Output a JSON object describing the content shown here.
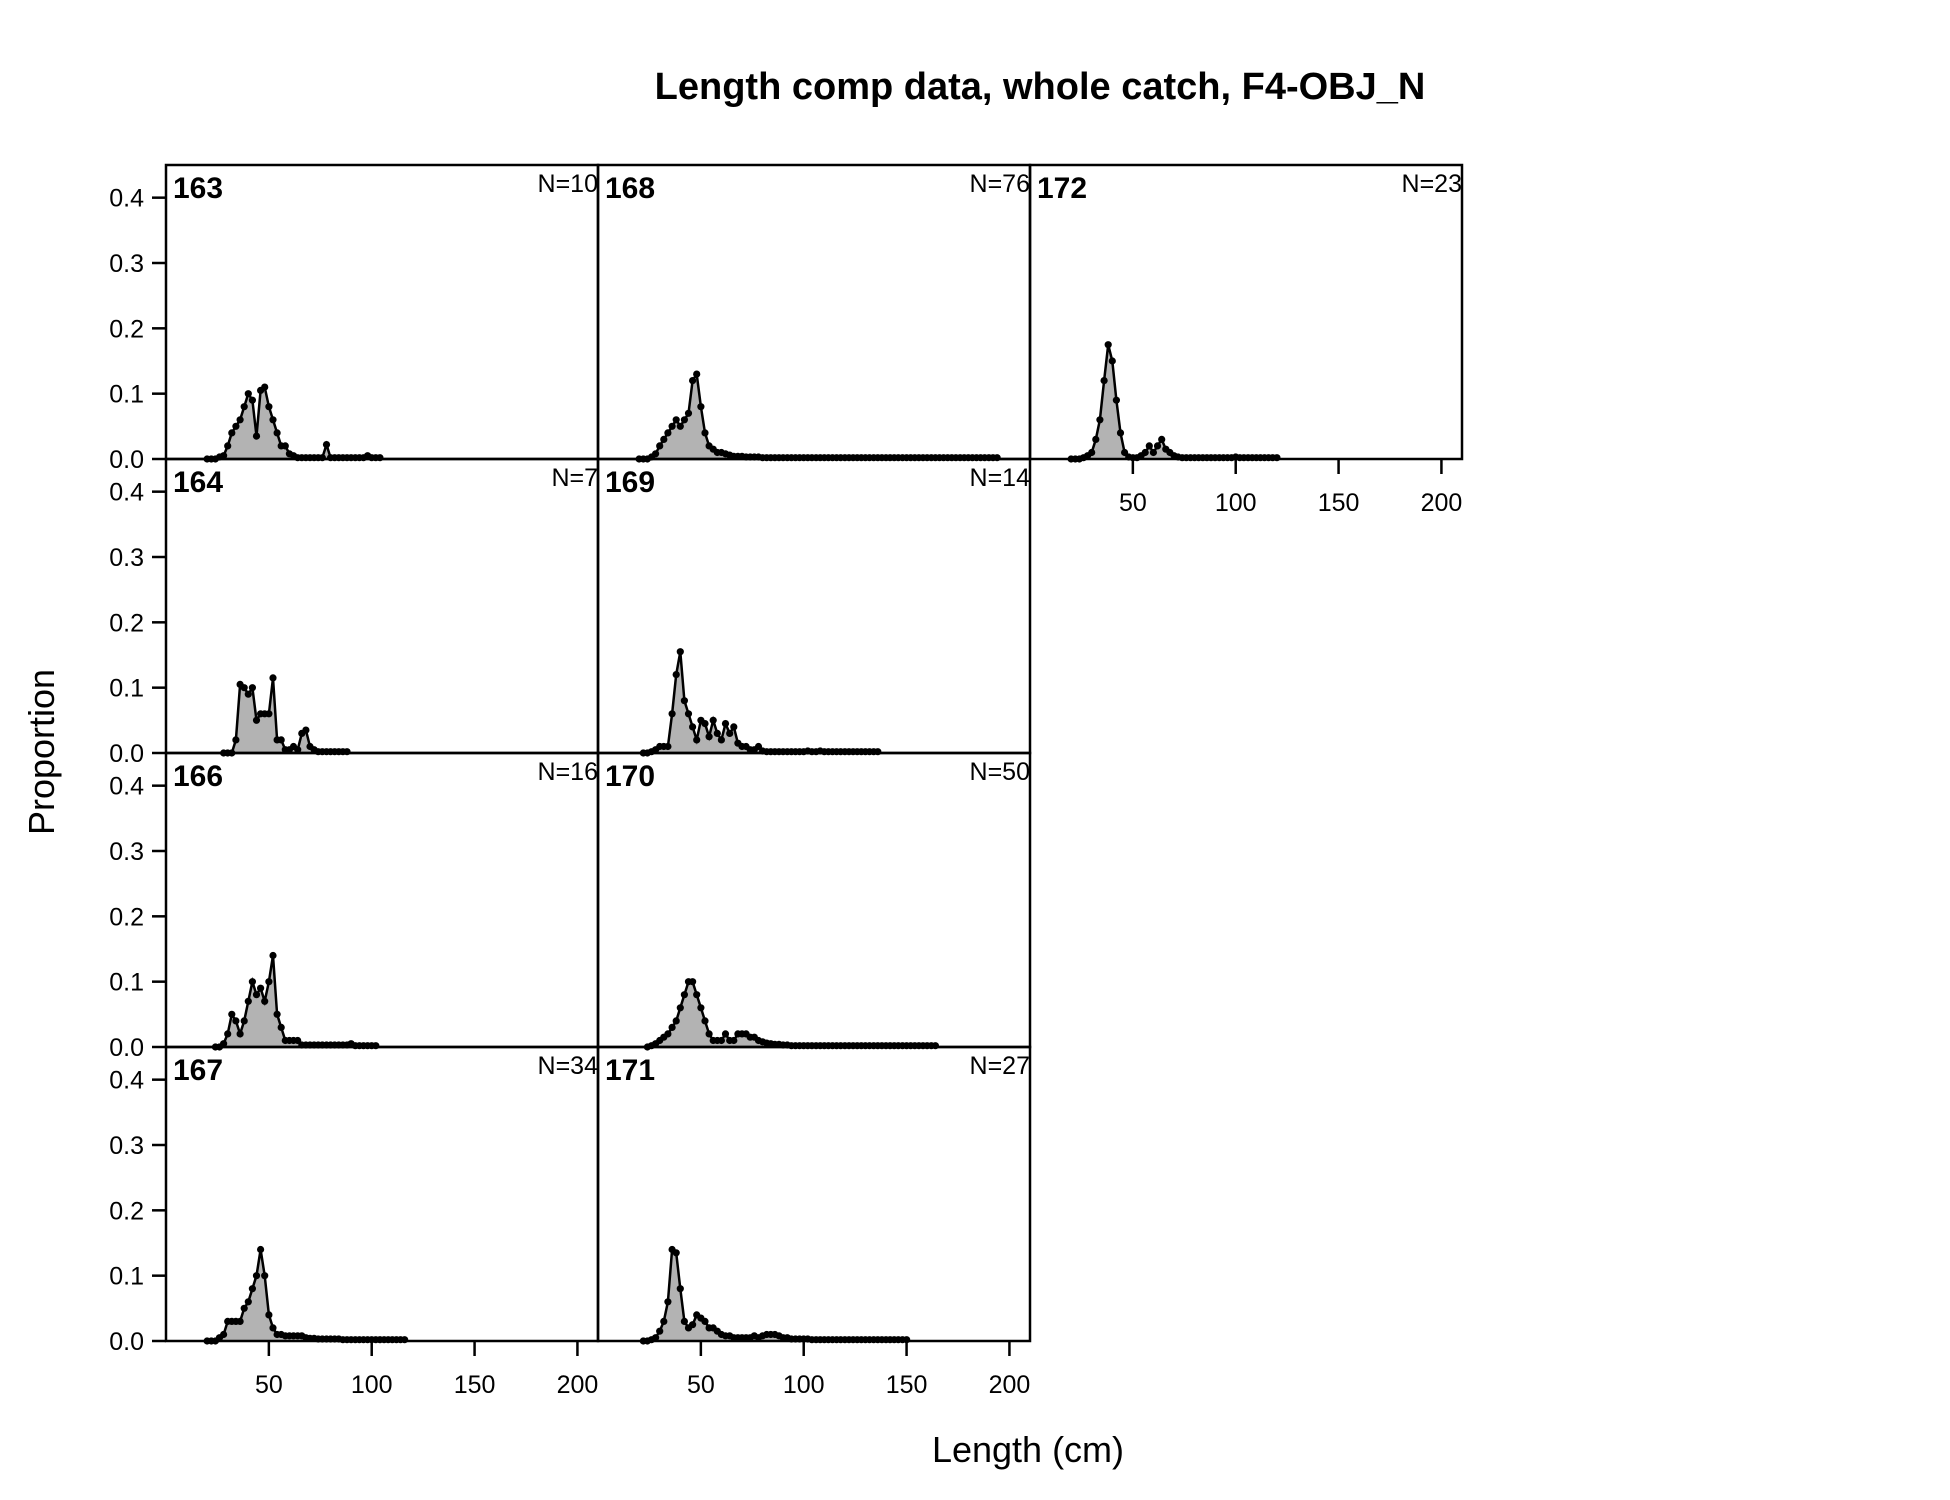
{
  "chart_data": {
    "type": "area",
    "title": "Length comp data, whole catch, F4-OBJ_N",
    "xlabel": "Length (cm)",
    "ylabel": "Proportion",
    "xlim": [
      0,
      210
    ],
    "ylim": [
      0,
      0.45
    ],
    "xticks": [
      "50",
      "100",
      "150",
      "200"
    ],
    "yticks": [
      "0.0",
      "0.1",
      "0.2",
      "0.3",
      "0.4"
    ],
    "grid": false,
    "colors": {
      "fill": "#b3b3b3",
      "line": "#000000"
    },
    "panels": [
      {
        "label": "163",
        "n_label": "N=10",
        "x": [
          20,
          22,
          24,
          26,
          28,
          30,
          32,
          34,
          36,
          38,
          40,
          42,
          44,
          46,
          48,
          50,
          52,
          54,
          56,
          58,
          60,
          62,
          64,
          66,
          68,
          70,
          72,
          74,
          76,
          78,
          80,
          82,
          84,
          86,
          88,
          90,
          92,
          94,
          96,
          98,
          100,
          102,
          104
        ],
        "y": [
          0,
          0,
          0,
          0.003,
          0.005,
          0.02,
          0.04,
          0.05,
          0.06,
          0.08,
          0.1,
          0.09,
          0.035,
          0.105,
          0.11,
          0.08,
          0.06,
          0.04,
          0.02,
          0.02,
          0.008,
          0.005,
          0.002,
          0.002,
          0.002,
          0.002,
          0.002,
          0.002,
          0.002,
          0.022,
          0.002,
          0.002,
          0.002,
          0.002,
          0.002,
          0.002,
          0.002,
          0.002,
          0.002,
          0.005,
          0.002,
          0.002,
          0.002
        ]
      },
      {
        "label": "164",
        "n_label": "N=7",
        "x": [
          28,
          30,
          32,
          34,
          36,
          38,
          40,
          42,
          44,
          46,
          48,
          50,
          52,
          54,
          56,
          58,
          60,
          62,
          64,
          66,
          68,
          70,
          72,
          74,
          76,
          78,
          80,
          82,
          84,
          86,
          88
        ],
        "y": [
          0,
          0,
          0,
          0.02,
          0.105,
          0.1,
          0.09,
          0.1,
          0.05,
          0.06,
          0.06,
          0.06,
          0.115,
          0.02,
          0.02,
          0.005,
          0.005,
          0.01,
          0.005,
          0.03,
          0.035,
          0.01,
          0.005,
          0.002,
          0.002,
          0.002,
          0.002,
          0.002,
          0.002,
          0.002,
          0.002
        ]
      },
      {
        "label": "166",
        "n_label": "N=16",
        "x": [
          24,
          26,
          28,
          30,
          32,
          34,
          36,
          38,
          40,
          42,
          44,
          46,
          48,
          50,
          52,
          54,
          56,
          58,
          60,
          62,
          64,
          66,
          68,
          70,
          72,
          74,
          76,
          78,
          80,
          82,
          84,
          86,
          88,
          90,
          92,
          94,
          96,
          98,
          100,
          102
        ],
        "y": [
          0,
          0,
          0.005,
          0.02,
          0.05,
          0.04,
          0.02,
          0.04,
          0.07,
          0.1,
          0.08,
          0.09,
          0.07,
          0.1,
          0.14,
          0.05,
          0.03,
          0.01,
          0.01,
          0.01,
          0.01,
          0.003,
          0.003,
          0.003,
          0.003,
          0.003,
          0.003,
          0.003,
          0.003,
          0.003,
          0.003,
          0.003,
          0.003,
          0.005,
          0.002,
          0.002,
          0.002,
          0.002,
          0.002,
          0.002
        ]
      },
      {
        "label": "167",
        "n_label": "N=34",
        "x": [
          20,
          22,
          24,
          26,
          28,
          30,
          32,
          34,
          36,
          38,
          40,
          42,
          44,
          46,
          48,
          50,
          52,
          54,
          56,
          58,
          60,
          62,
          64,
          66,
          68,
          70,
          72,
          74,
          76,
          78,
          80,
          82,
          84,
          86,
          88,
          90,
          92,
          94,
          96,
          98,
          100,
          102,
          104,
          106,
          108,
          110,
          112,
          114,
          116
        ],
        "y": [
          0,
          0,
          0,
          0.005,
          0.01,
          0.03,
          0.03,
          0.03,
          0.03,
          0.05,
          0.06,
          0.08,
          0.1,
          0.14,
          0.1,
          0.04,
          0.02,
          0.01,
          0.01,
          0.008,
          0.008,
          0.008,
          0.008,
          0.008,
          0.005,
          0.004,
          0.004,
          0.003,
          0.003,
          0.003,
          0.003,
          0.003,
          0.003,
          0.002,
          0.002,
          0.002,
          0.002,
          0.002,
          0.002,
          0.002,
          0.002,
          0.002,
          0.002,
          0.002,
          0.002,
          0.002,
          0.002,
          0.002,
          0.002
        ]
      },
      {
        "label": "168",
        "n_label": "N=76",
        "x": [
          20,
          22,
          24,
          26,
          28,
          30,
          32,
          34,
          36,
          38,
          40,
          42,
          44,
          46,
          48,
          50,
          52,
          54,
          56,
          58,
          60,
          62,
          64,
          66,
          68,
          70,
          72,
          74,
          76,
          78,
          80,
          82,
          84,
          86,
          88,
          90,
          92,
          94,
          96,
          98,
          100,
          102,
          104,
          106,
          108,
          110,
          112,
          114,
          116,
          118,
          120,
          122,
          124,
          126,
          128,
          130,
          132,
          134,
          136,
          138,
          140,
          142,
          144,
          146,
          148,
          150,
          152,
          154,
          156,
          158,
          160,
          162,
          164,
          166,
          168,
          170,
          172,
          174,
          176,
          178,
          180,
          182,
          184,
          186,
          188,
          190,
          192,
          194
        ],
        "y": [
          0,
          0,
          0,
          0.003,
          0.008,
          0.02,
          0.03,
          0.04,
          0.05,
          0.06,
          0.05,
          0.06,
          0.07,
          0.12,
          0.13,
          0.08,
          0.04,
          0.02,
          0.015,
          0.01,
          0.01,
          0.008,
          0.006,
          0.004,
          0.004,
          0.004,
          0.003,
          0.003,
          0.003,
          0.003,
          0.002,
          0.002,
          0.002,
          0.002,
          0.002,
          0.002,
          0.002,
          0.002,
          0.002,
          0.002,
          0.002,
          0.002,
          0.002,
          0.002,
          0.002,
          0.002,
          0.002,
          0.002,
          0.002,
          0.002,
          0.002,
          0.002,
          0.002,
          0.002,
          0.002,
          0.002,
          0.002,
          0.002,
          0.002,
          0.002,
          0.002,
          0.002,
          0.002,
          0.002,
          0.002,
          0.002,
          0.002,
          0.002,
          0.002,
          0.002,
          0.002,
          0.002,
          0.002,
          0.002,
          0.002,
          0.002,
          0.002,
          0.002,
          0.002,
          0.002,
          0.002,
          0.002,
          0.002,
          0.002,
          0.002,
          0.002,
          0.002,
          0.002
        ]
      },
      {
        "label": "169",
        "n_label": "N=14",
        "x": [
          22,
          24,
          26,
          28,
          30,
          32,
          34,
          36,
          38,
          40,
          42,
          44,
          46,
          48,
          50,
          52,
          54,
          56,
          58,
          60,
          62,
          64,
          66,
          68,
          70,
          72,
          74,
          76,
          78,
          80,
          82,
          84,
          86,
          88,
          90,
          92,
          94,
          96,
          98,
          100,
          102,
          104,
          106,
          108,
          110,
          112,
          114,
          116,
          118,
          120,
          122,
          124,
          126,
          128,
          130,
          132,
          134,
          136
        ],
        "y": [
          0,
          0,
          0.002,
          0.005,
          0.01,
          0.01,
          0.01,
          0.06,
          0.12,
          0.155,
          0.08,
          0.06,
          0.04,
          0.02,
          0.05,
          0.045,
          0.025,
          0.05,
          0.03,
          0.02,
          0.045,
          0.03,
          0.04,
          0.015,
          0.01,
          0.01,
          0.005,
          0.005,
          0.01,
          0.003,
          0.002,
          0.002,
          0.002,
          0.002,
          0.002,
          0.002,
          0.002,
          0.002,
          0.002,
          0.002,
          0.003,
          0.002,
          0.002,
          0.003,
          0.002,
          0.002,
          0.002,
          0.002,
          0.002,
          0.002,
          0.002,
          0.002,
          0.002,
          0.002,
          0.002,
          0.002,
          0.002,
          0.002
        ]
      },
      {
        "label": "170",
        "n_label": "N=50",
        "x": [
          24,
          26,
          28,
          30,
          32,
          34,
          36,
          38,
          40,
          42,
          44,
          46,
          48,
          50,
          52,
          54,
          56,
          58,
          60,
          62,
          64,
          66,
          68,
          70,
          72,
          74,
          76,
          78,
          80,
          82,
          84,
          86,
          88,
          90,
          92,
          94,
          96,
          98,
          100,
          102,
          104,
          106,
          108,
          110,
          112,
          114,
          116,
          118,
          120,
          122,
          124,
          126,
          128,
          130,
          132,
          134,
          136,
          138,
          140,
          142,
          144,
          146,
          148,
          150,
          152,
          154,
          156,
          158,
          160,
          162,
          164
        ],
        "y": [
          0,
          0.002,
          0.005,
          0.01,
          0.015,
          0.02,
          0.03,
          0.04,
          0.06,
          0.08,
          0.1,
          0.1,
          0.08,
          0.06,
          0.04,
          0.02,
          0.01,
          0.01,
          0.01,
          0.02,
          0.01,
          0.01,
          0.02,
          0.02,
          0.02,
          0.015,
          0.015,
          0.01,
          0.008,
          0.006,
          0.005,
          0.004,
          0.004,
          0.003,
          0.003,
          0.002,
          0.002,
          0.002,
          0.002,
          0.002,
          0.002,
          0.002,
          0.002,
          0.002,
          0.002,
          0.002,
          0.002,
          0.002,
          0.002,
          0.002,
          0.002,
          0.002,
          0.002,
          0.002,
          0.002,
          0.002,
          0.002,
          0.002,
          0.002,
          0.002,
          0.002,
          0.002,
          0.002,
          0.002,
          0.002,
          0.002,
          0.002,
          0.002,
          0.002,
          0.002,
          0.002
        ]
      },
      {
        "label": "171",
        "n_label": "N=27",
        "x": [
          22,
          24,
          26,
          28,
          30,
          32,
          34,
          36,
          38,
          40,
          42,
          44,
          46,
          48,
          50,
          52,
          54,
          56,
          58,
          60,
          62,
          64,
          66,
          68,
          70,
          72,
          74,
          76,
          78,
          80,
          82,
          84,
          86,
          88,
          90,
          92,
          94,
          96,
          98,
          100,
          102,
          104,
          106,
          108,
          110,
          112,
          114,
          116,
          118,
          120,
          122,
          124,
          126,
          128,
          130,
          132,
          134,
          136,
          138,
          140,
          142,
          144,
          146,
          148,
          150
        ],
        "y": [
          0,
          0,
          0.002,
          0.005,
          0.015,
          0.03,
          0.06,
          0.14,
          0.135,
          0.08,
          0.03,
          0.02,
          0.025,
          0.04,
          0.035,
          0.03,
          0.02,
          0.02,
          0.015,
          0.01,
          0.008,
          0.008,
          0.005,
          0.005,
          0.005,
          0.005,
          0.005,
          0.008,
          0.005,
          0.008,
          0.01,
          0.01,
          0.01,
          0.008,
          0.005,
          0.005,
          0.003,
          0.003,
          0.003,
          0.003,
          0.003,
          0.002,
          0.002,
          0.002,
          0.002,
          0.002,
          0.002,
          0.002,
          0.002,
          0.002,
          0.002,
          0.002,
          0.002,
          0.002,
          0.002,
          0.002,
          0.002,
          0.002,
          0.002,
          0.002,
          0.002,
          0.002,
          0.002,
          0.002,
          0.002
        ]
      },
      {
        "label": "172",
        "n_label": "N=23",
        "x": [
          20,
          22,
          24,
          26,
          28,
          30,
          32,
          34,
          36,
          38,
          40,
          42,
          44,
          46,
          48,
          50,
          52,
          54,
          56,
          58,
          60,
          62,
          64,
          66,
          68,
          70,
          72,
          74,
          76,
          78,
          80,
          82,
          84,
          86,
          88,
          90,
          92,
          94,
          96,
          98,
          100,
          102,
          104,
          106,
          108,
          110,
          112,
          114,
          116,
          118,
          120
        ],
        "y": [
          0,
          0,
          0,
          0.002,
          0.005,
          0.01,
          0.03,
          0.06,
          0.12,
          0.175,
          0.15,
          0.09,
          0.04,
          0.01,
          0.003,
          0.002,
          0.002,
          0.005,
          0.01,
          0.02,
          0.01,
          0.02,
          0.03,
          0.015,
          0.01,
          0.005,
          0.003,
          0.002,
          0.002,
          0.002,
          0.002,
          0.002,
          0.002,
          0.002,
          0.002,
          0.002,
          0.002,
          0.002,
          0.002,
          0.002,
          0.003,
          0.002,
          0.002,
          0.002,
          0.002,
          0.002,
          0.002,
          0.002,
          0.002,
          0.002,
          0.002
        ]
      }
    ]
  }
}
